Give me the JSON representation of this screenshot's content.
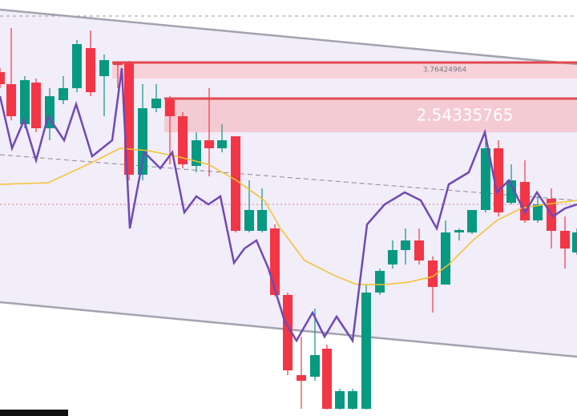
{
  "annotations": [
    {
      "label": "3.76424964"
    },
    {
      "label": "2.54335765"
    }
  ]
}
